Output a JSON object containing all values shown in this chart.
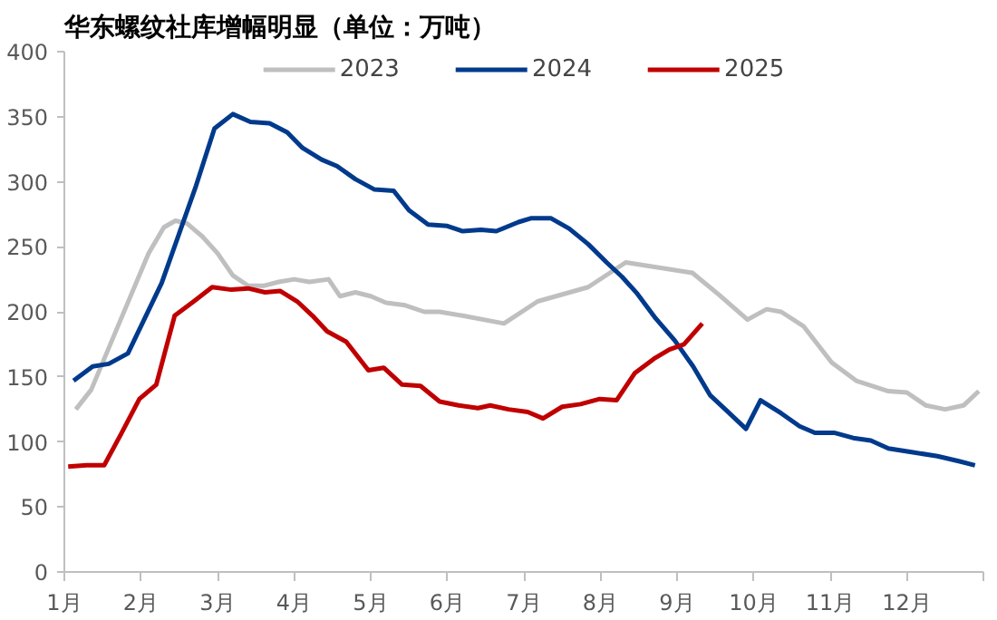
{
  "chart_data": {
    "type": "line",
    "title": "华东螺纹社库增幅明显（单位：万吨）",
    "xlim": [
      1,
      13
    ],
    "ylim": [
      0,
      400
    ],
    "xticks": [
      {
        "value": 1,
        "label": "1月"
      },
      {
        "value": 2,
        "label": "2月"
      },
      {
        "value": 3,
        "label": "3月"
      },
      {
        "value": 4,
        "label": "4月"
      },
      {
        "value": 5,
        "label": "5月"
      },
      {
        "value": 6,
        "label": "6月"
      },
      {
        "value": 7,
        "label": "7月"
      },
      {
        "value": 8,
        "label": "8月"
      },
      {
        "value": 9,
        "label": "9月"
      },
      {
        "value": 10,
        "label": "10月"
      },
      {
        "value": 11,
        "label": "11月"
      },
      {
        "value": 12,
        "label": "12月"
      },
      {
        "value": 13,
        "label": null
      }
    ],
    "yticks": [
      0,
      50,
      100,
      150,
      200,
      250,
      300,
      350,
      400
    ],
    "grid": false,
    "legend": "top",
    "marker": "none",
    "line_style": "solid",
    "series": [
      {
        "name": "2023",
        "color": "#bfbfbf",
        "x": [
          1.15,
          1.35,
          1.6,
          1.85,
          2.1,
          2.3,
          2.45,
          2.6,
          2.8,
          3.0,
          3.2,
          3.4,
          3.6,
          3.8,
          4.0,
          4.2,
          4.45,
          4.6,
          4.8,
          5.0,
          5.2,
          5.45,
          5.7,
          5.9,
          6.2,
          6.74,
          7.18,
          7.84,
          8.33,
          9.2,
          9.55,
          9.92,
          10.17,
          10.36,
          10.65,
          11.02,
          11.34,
          11.76,
          12.0,
          12.25,
          12.5,
          12.74,
          12.94
        ],
        "values": [
          125,
          140,
          175,
          210,
          245,
          265,
          270,
          268,
          258,
          245,
          228,
          220,
          220,
          223,
          225,
          223,
          225,
          212,
          215,
          212,
          207,
          205,
          200,
          200,
          197,
          191,
          208,
          219,
          238,
          230,
          213,
          194,
          202,
          200,
          189,
          161,
          147,
          139,
          138,
          128,
          125,
          128,
          139
        ]
      },
      {
        "name": "2024",
        "color": "#003a8c",
        "x": [
          1.12,
          1.37,
          1.58,
          1.83,
          2.27,
          2.72,
          2.96,
          3.2,
          3.43,
          3.68,
          3.91,
          4.11,
          4.36,
          4.56,
          4.8,
          5.05,
          5.3,
          5.5,
          5.75,
          6.0,
          6.2,
          6.44,
          6.64,
          6.93,
          7.1,
          7.35,
          7.59,
          7.84,
          8.08,
          8.28,
          8.48,
          8.72,
          8.97,
          9.21,
          9.43,
          9.63,
          9.9,
          10.09,
          10.36,
          10.6,
          10.8,
          11.05,
          11.3,
          11.53,
          11.76,
          12.08,
          12.4,
          12.69,
          12.89
        ],
        "values": [
          147,
          158,
          160,
          168,
          222,
          297,
          341,
          352,
          346,
          345,
          338,
          326,
          317,
          312,
          302,
          294,
          293,
          278,
          267,
          266,
          262,
          263,
          262,
          269,
          272,
          272,
          264,
          252,
          238,
          227,
          214,
          195,
          178,
          158,
          136,
          125,
          110,
          132,
          122,
          112,
          107,
          107,
          103,
          101,
          95,
          92,
          89,
          85,
          82
        ]
      },
      {
        "name": "2025",
        "color": "#c00000",
        "x": [
          1.05,
          1.29,
          1.52,
          1.74,
          1.98,
          2.2,
          2.44,
          2.69,
          2.93,
          3.18,
          3.4,
          3.62,
          3.82,
          4.04,
          4.24,
          4.43,
          4.68,
          4.97,
          5.17,
          5.41,
          5.65,
          5.9,
          6.15,
          6.4,
          6.56,
          6.8,
          7.05,
          7.25,
          7.5,
          7.74,
          7.99,
          8.21,
          8.45,
          8.7,
          8.9,
          9.09,
          9.33
        ],
        "values": [
          81,
          82,
          82,
          106,
          133,
          144,
          197,
          208,
          219,
          217,
          218,
          215,
          216,
          208,
          197,
          185,
          177,
          155,
          157,
          144,
          143,
          131,
          128,
          126,
          128,
          125,
          123,
          118,
          127,
          129,
          133,
          132,
          153,
          164,
          171,
          175,
          191
        ]
      }
    ]
  }
}
